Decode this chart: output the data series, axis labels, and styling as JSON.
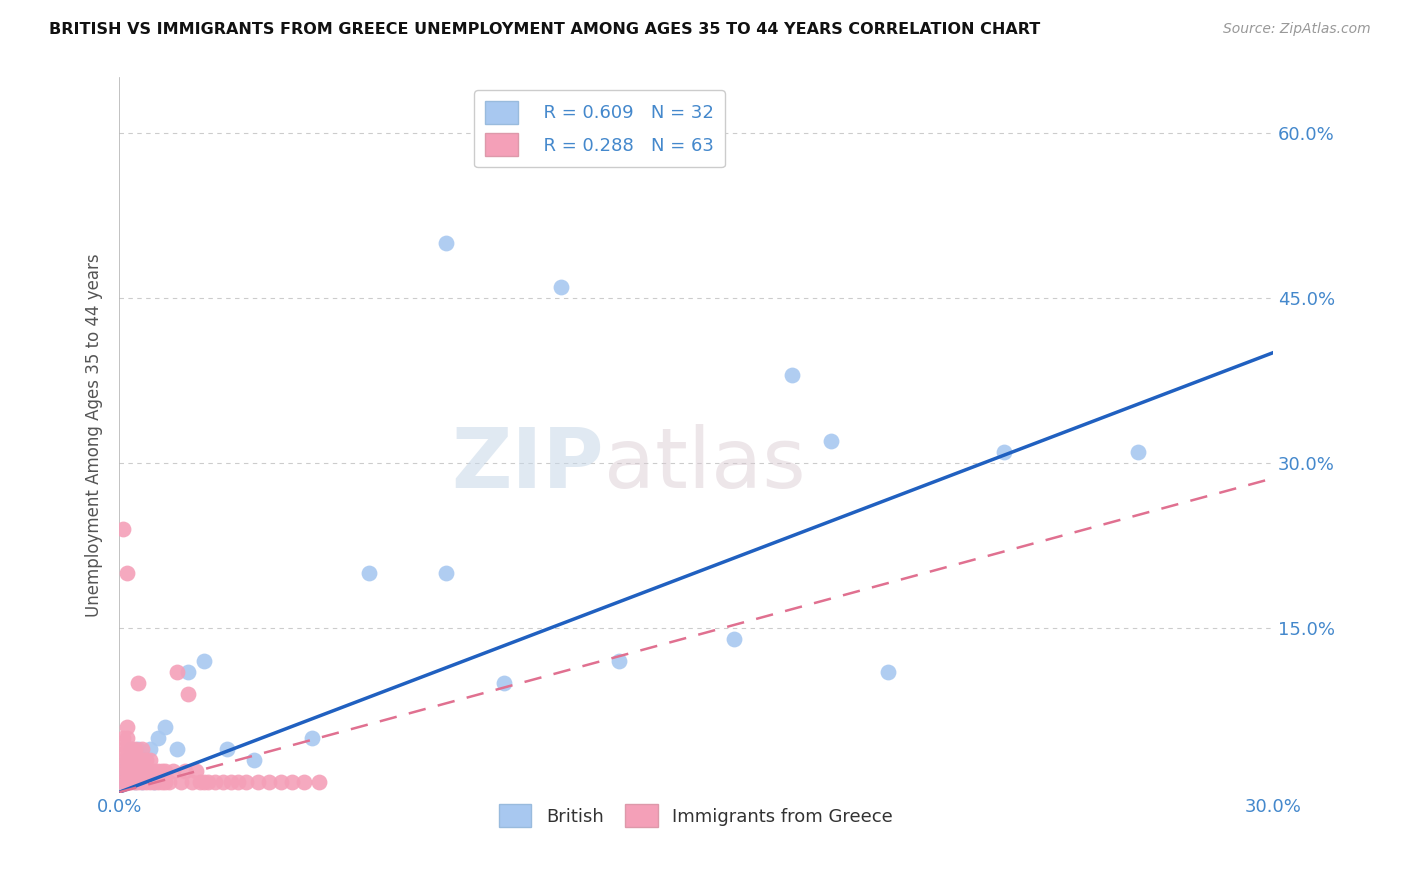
{
  "title": "BRITISH VS IMMIGRANTS FROM GREECE UNEMPLOYMENT AMONG AGES 35 TO 44 YEARS CORRELATION CHART",
  "source": "Source: ZipAtlas.com",
  "ylabel": "Unemployment Among Ages 35 to 44 years",
  "watermark_zip": "ZIP",
  "watermark_atlas": "atlas",
  "xlim": [
    0.0,
    0.3
  ],
  "ylim": [
    0.0,
    0.65
  ],
  "R_british": 0.609,
  "N_british": 32,
  "R_greece": 0.288,
  "N_greece": 63,
  "british_color": "#a8c8f0",
  "greece_color": "#f4a0b8",
  "regression_british_color": "#2060c0",
  "regression_greece_color": "#e07090",
  "background_color": "#ffffff",
  "grid_color": "#cccccc",
  "axis_label_color": "#4488cc",
  "legend_text_color": "#4488cc",
  "british_x": [
    0.001,
    0.001,
    0.002,
    0.002,
    0.003,
    0.003,
    0.004,
    0.004,
    0.005,
    0.005,
    0.006,
    0.006,
    0.007,
    0.008,
    0.009,
    0.01,
    0.012,
    0.015,
    0.018,
    0.022,
    0.028,
    0.035,
    0.05,
    0.065,
    0.085,
    0.1,
    0.13,
    0.16,
    0.185,
    0.2,
    0.23,
    0.265
  ],
  "british_y": [
    0.01,
    0.02,
    0.01,
    0.03,
    0.02,
    0.04,
    0.01,
    0.03,
    0.02,
    0.04,
    0.01,
    0.03,
    0.02,
    0.04,
    0.01,
    0.05,
    0.06,
    0.04,
    0.11,
    0.12,
    0.04,
    0.03,
    0.05,
    0.2,
    0.2,
    0.1,
    0.12,
    0.14,
    0.32,
    0.11,
    0.31,
    0.31
  ],
  "greece_x": [
    0.001,
    0.001,
    0.001,
    0.001,
    0.001,
    0.002,
    0.002,
    0.002,
    0.002,
    0.002,
    0.002,
    0.003,
    0.003,
    0.003,
    0.003,
    0.004,
    0.004,
    0.004,
    0.004,
    0.005,
    0.005,
    0.005,
    0.005,
    0.006,
    0.006,
    0.006,
    0.006,
    0.007,
    0.007,
    0.007,
    0.008,
    0.008,
    0.008,
    0.009,
    0.009,
    0.01,
    0.01,
    0.011,
    0.011,
    0.012,
    0.012,
    0.013,
    0.014,
    0.015,
    0.016,
    0.017,
    0.018,
    0.019,
    0.02,
    0.021,
    0.022,
    0.023,
    0.025,
    0.027,
    0.029,
    0.031,
    0.033,
    0.036,
    0.039,
    0.042,
    0.045,
    0.048,
    0.052
  ],
  "greece_y": [
    0.01,
    0.02,
    0.03,
    0.04,
    0.05,
    0.01,
    0.02,
    0.03,
    0.04,
    0.05,
    0.06,
    0.01,
    0.02,
    0.03,
    0.04,
    0.01,
    0.02,
    0.03,
    0.04,
    0.01,
    0.02,
    0.03,
    0.1,
    0.01,
    0.02,
    0.03,
    0.04,
    0.01,
    0.02,
    0.03,
    0.01,
    0.02,
    0.03,
    0.01,
    0.02,
    0.01,
    0.02,
    0.01,
    0.02,
    0.01,
    0.02,
    0.01,
    0.02,
    0.11,
    0.01,
    0.02,
    0.09,
    0.01,
    0.02,
    0.01,
    0.01,
    0.01,
    0.01,
    0.01,
    0.01,
    0.01,
    0.01,
    0.01,
    0.01,
    0.01,
    0.01,
    0.01,
    0.01
  ],
  "greece_special": [
    [
      0.001,
      0.24
    ],
    [
      0.002,
      0.2
    ]
  ],
  "british_special": [
    [
      0.085,
      0.5
    ],
    [
      0.115,
      0.46
    ],
    [
      0.175,
      0.38
    ]
  ]
}
